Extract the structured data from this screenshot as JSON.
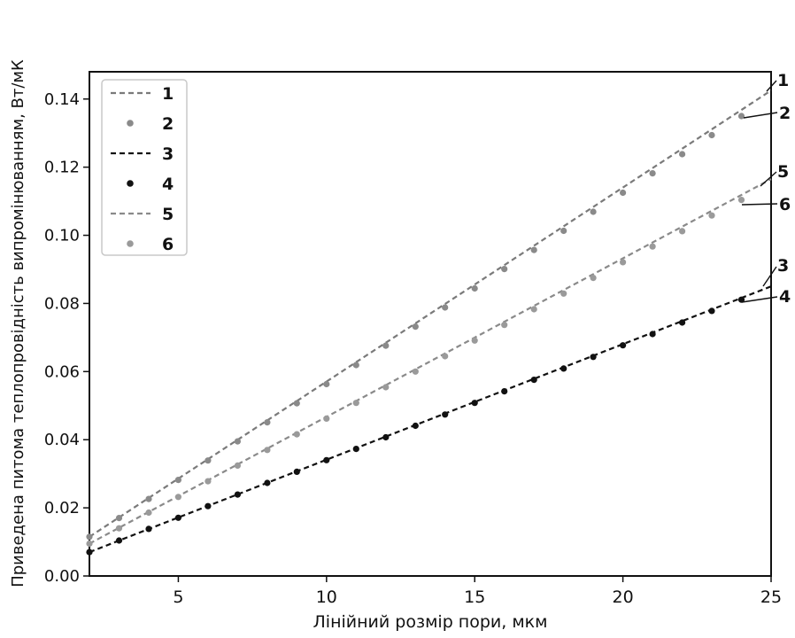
{
  "chart_data": {
    "type": "line",
    "title": "",
    "xlabel": "Лінійний розмір пори, мкм",
    "ylabel": "Приведена питома теплопровідність випромінюванням, Вт/мК",
    "xlim": [
      2,
      25
    ],
    "ylim": [
      0.0,
      0.148
    ],
    "xticks": [
      5,
      10,
      15,
      20,
      25
    ],
    "xtick_labels": [
      "5",
      "10",
      "15",
      "20",
      "25"
    ],
    "yticks": [
      0.0,
      0.02,
      0.04,
      0.06,
      0.08,
      0.1,
      0.12,
      0.14
    ],
    "ytick_labels": [
      "0.00",
      "0.02",
      "0.04",
      "0.06",
      "0.08",
      "0.10",
      "0.12",
      "0.14"
    ],
    "grid": false,
    "legend_position": "top-left",
    "series": [
      {
        "name": "1",
        "style": "dashed-line",
        "color": "#7a7a7a",
        "x": [
          2,
          25
        ],
        "y": [
          0.0115,
          0.1425
        ],
        "end_label": "1"
      },
      {
        "name": "2",
        "style": "markers",
        "color": "#8a8a8a",
        "x": [
          2,
          3,
          4,
          5,
          6,
          7,
          8,
          9,
          10,
          11,
          12,
          13,
          14,
          15,
          16,
          17,
          18,
          19,
          20,
          21,
          22,
          23,
          24
        ],
        "y": [
          0.0115,
          0.017,
          0.0226,
          0.0282,
          0.0339,
          0.0395,
          0.0451,
          0.0507,
          0.0563,
          0.0619,
          0.0676,
          0.0732,
          0.0788,
          0.0844,
          0.0901,
          0.0957,
          0.1013,
          0.1069,
          0.1125,
          0.1182,
          0.1238,
          0.1294,
          0.135
        ],
        "end_label": "2"
      },
      {
        "name": "3",
        "style": "dashed-line",
        "color": "#111111",
        "x": [
          2,
          25
        ],
        "y": [
          0.007,
          0.085
        ],
        "end_label": "3"
      },
      {
        "name": "4",
        "style": "markers",
        "color": "#111111",
        "x": [
          2,
          3,
          4,
          5,
          6,
          7,
          8,
          9,
          10,
          11,
          12,
          13,
          14,
          15,
          16,
          17,
          18,
          19,
          20,
          21,
          22,
          23,
          24
        ],
        "y": [
          0.007,
          0.0104,
          0.0138,
          0.0171,
          0.0205,
          0.0239,
          0.0273,
          0.0306,
          0.034,
          0.0373,
          0.0407,
          0.0441,
          0.0474,
          0.0508,
          0.0542,
          0.0576,
          0.0609,
          0.0643,
          0.0677,
          0.071,
          0.0744,
          0.0778,
          0.0811
        ],
        "end_label": "4"
      },
      {
        "name": "5",
        "style": "dashed-line",
        "color": "#8a8a8a",
        "x": [
          2,
          25
        ],
        "y": [
          0.0095,
          0.1165
        ],
        "end_label": "5"
      },
      {
        "name": "6",
        "style": "markers",
        "color": "#9a9a9a",
        "x": [
          2,
          3,
          4,
          5,
          6,
          7,
          8,
          9,
          10,
          11,
          12,
          13,
          14,
          15,
          16,
          17,
          18,
          19,
          20,
          21,
          22,
          23,
          24
        ],
        "y": [
          0.0095,
          0.014,
          0.0186,
          0.0232,
          0.0278,
          0.0324,
          0.037,
          0.0416,
          0.0462,
          0.0508,
          0.0554,
          0.06,
          0.0645,
          0.0691,
          0.0737,
          0.0783,
          0.0829,
          0.0875,
          0.0921,
          0.0967,
          0.1012,
          0.1058,
          0.1104
        ],
        "end_label": "6"
      }
    ]
  }
}
